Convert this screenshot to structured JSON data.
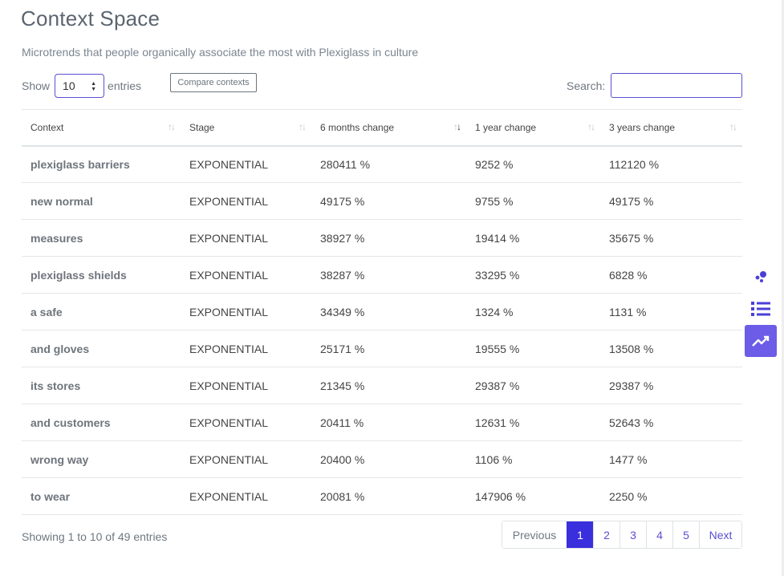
{
  "header": {
    "title": "Context Space",
    "subtitle": "Microtrends that people organically associate the most with Plexiglass in culture"
  },
  "controls": {
    "show_label": "Show",
    "entries_value": "10",
    "entries_label": "entries",
    "compare_button": "Compare contexts",
    "search_label": "Search:",
    "search_value": ""
  },
  "table": {
    "columns": [
      "Context",
      "Stage",
      "6 months change",
      "1 year change",
      "3 years change"
    ],
    "sorted_column": "6 months change",
    "rows": [
      {
        "context": "plexiglass barriers",
        "stage": "EXPONENTIAL",
        "m6": "280411 %",
        "y1": "9252 %",
        "y3": "112120 %"
      },
      {
        "context": "new normal",
        "stage": "EXPONENTIAL",
        "m6": "49175 %",
        "y1": "9755 %",
        "y3": "49175 %"
      },
      {
        "context": "measures",
        "stage": "EXPONENTIAL",
        "m6": "38927 %",
        "y1": "19414 %",
        "y3": "35675 %"
      },
      {
        "context": "plexiglass shields",
        "stage": "EXPONENTIAL",
        "m6": "38287 %",
        "y1": "33295 %",
        "y3": "6828 %"
      },
      {
        "context": "a safe",
        "stage": "EXPONENTIAL",
        "m6": "34349 %",
        "y1": "1324 %",
        "y3": "1131 %"
      },
      {
        "context": "and gloves",
        "stage": "EXPONENTIAL",
        "m6": "25171 %",
        "y1": "19555 %",
        "y3": "13508 %"
      },
      {
        "context": "its stores",
        "stage": "EXPONENTIAL",
        "m6": "21345 %",
        "y1": "29387 %",
        "y3": "29387 %"
      },
      {
        "context": "and customers",
        "stage": "EXPONENTIAL",
        "m6": "20411 %",
        "y1": "12631 %",
        "y3": "52643 %"
      },
      {
        "context": "wrong way",
        "stage": "EXPONENTIAL",
        "m6": "20400 %",
        "y1": "1106 %",
        "y3": "1477 %"
      },
      {
        "context": "to wear",
        "stage": "EXPONENTIAL",
        "m6": "20081 %",
        "y1": "147906 %",
        "y3": "2250 %"
      }
    ]
  },
  "footer": {
    "info": "Showing 1 to 10 of 49 entries",
    "pagination": {
      "previous": "Previous",
      "pages": [
        "1",
        "2",
        "3",
        "4",
        "5"
      ],
      "active_page": "1",
      "next": "Next"
    }
  },
  "side_nav": {
    "icons": [
      "bubbles-icon",
      "list-icon",
      "trend-chart-icon"
    ],
    "active": "trend-chart-icon"
  },
  "colors": {
    "accent": "#5b4fd1",
    "active_page": "#3a2fdc",
    "side_active": "#6c5ce7"
  }
}
